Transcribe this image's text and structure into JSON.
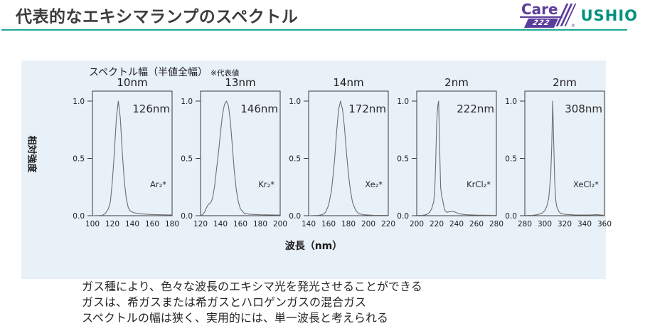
{
  "header": {
    "title": "代表的なエキシマランプのスペクトル",
    "care_logo": {
      "word": "Care",
      "number": "222",
      "registered": "®"
    },
    "ushio": "USHIO",
    "accent_color": "#21a795",
    "purple_color": "#5b3d9c"
  },
  "panel": {
    "bg_color": "#e8f0f8",
    "fwhm_header": "スペクトル幅（半値全幅）",
    "fwhm_note": "※代表値",
    "ylabel": "相対強度",
    "xlabel": "波長（nm）"
  },
  "chart_data": [
    {
      "type": "line",
      "title": "10nm",
      "peak_label": "126nm",
      "gas_label": "Ar₂*",
      "xlim": [
        100,
        180
      ],
      "ylim": [
        0,
        1.1
      ],
      "xticks": [
        100,
        120,
        140,
        160,
        180
      ],
      "yticks": [
        0.0,
        0.5,
        1.0
      ],
      "points": [
        [
          100,
          0
        ],
        [
          110,
          0.003
        ],
        [
          113,
          0.02
        ],
        [
          116,
          0.06
        ],
        [
          118,
          0.12
        ],
        [
          120,
          0.3
        ],
        [
          122,
          0.55
        ],
        [
          124,
          0.85
        ],
        [
          126,
          1.0
        ],
        [
          128,
          0.85
        ],
        [
          130,
          0.55
        ],
        [
          132,
          0.3
        ],
        [
          134,
          0.15
        ],
        [
          136,
          0.07
        ],
        [
          138,
          0.04
        ],
        [
          142,
          0.025
        ],
        [
          150,
          0.015
        ],
        [
          160,
          0.01
        ],
        [
          180,
          0.006
        ]
      ]
    },
    {
      "type": "line",
      "title": "13nm",
      "peak_label": "146nm",
      "gas_label": "Kr₂*",
      "xlim": [
        120,
        200
      ],
      "ylim": [
        0,
        1.1
      ],
      "xticks": [
        120,
        140,
        160,
        180,
        200
      ],
      "yticks": [
        0.0,
        0.5,
        1.0
      ],
      "points": [
        [
          120,
          0
        ],
        [
          122,
          0.01
        ],
        [
          124,
          0.03
        ],
        [
          126,
          0.07
        ],
        [
          128,
          0.1
        ],
        [
          130,
          0.11
        ],
        [
          132,
          0.15
        ],
        [
          134,
          0.25
        ],
        [
          136,
          0.4
        ],
        [
          138,
          0.55
        ],
        [
          140,
          0.72
        ],
        [
          142,
          0.88
        ],
        [
          144,
          0.97
        ],
        [
          146,
          1.0
        ],
        [
          148,
          0.96
        ],
        [
          150,
          0.82
        ],
        [
          152,
          0.6
        ],
        [
          154,
          0.38
        ],
        [
          156,
          0.22
        ],
        [
          158,
          0.12
        ],
        [
          160,
          0.06
        ],
        [
          164,
          0.02
        ],
        [
          170,
          0.012
        ],
        [
          180,
          0.008
        ],
        [
          200,
          0.005
        ]
      ]
    },
    {
      "type": "line",
      "title": "14nm",
      "peak_label": "172nm",
      "gas_label": "Xe₂*",
      "xlim": [
        140,
        220
      ],
      "ylim": [
        0,
        1.1
      ],
      "xticks": [
        140,
        160,
        180,
        200,
        220
      ],
      "yticks": [
        0.0,
        0.5,
        1.0
      ],
      "points": [
        [
          140,
          0
        ],
        [
          150,
          0.003
        ],
        [
          154,
          0.01
        ],
        [
          157,
          0.03
        ],
        [
          160,
          0.09
        ],
        [
          163,
          0.22
        ],
        [
          166,
          0.48
        ],
        [
          168,
          0.72
        ],
        [
          170,
          0.92
        ],
        [
          172,
          1.0
        ],
        [
          174,
          0.93
        ],
        [
          176,
          0.77
        ],
        [
          178,
          0.55
        ],
        [
          180,
          0.36
        ],
        [
          182,
          0.22
        ],
        [
          184,
          0.12
        ],
        [
          187,
          0.05
        ],
        [
          190,
          0.02
        ],
        [
          195,
          0.008
        ],
        [
          205,
          0.004
        ],
        [
          220,
          0.003
        ]
      ]
    },
    {
      "type": "line",
      "title": "2nm",
      "peak_label": "222nm",
      "gas_label": "KrCl₂*",
      "xlim": [
        200,
        280
      ],
      "ylim": [
        0,
        1.1
      ],
      "xticks": [
        200,
        220,
        240,
        260,
        280
      ],
      "yticks": [
        0.0,
        0.5,
        1.0
      ],
      "points": [
        [
          200,
          0.002
        ],
        [
          206,
          0.004
        ],
        [
          210,
          0.01
        ],
        [
          213,
          0.03
        ],
        [
          215,
          0.06
        ],
        [
          217,
          0.12
        ],
        [
          218,
          0.2
        ],
        [
          219,
          0.45
        ],
        [
          220,
          0.8
        ],
        [
          221,
          0.95
        ],
        [
          222,
          1.0
        ],
        [
          223,
          0.6
        ],
        [
          224,
          0.25
        ],
        [
          225,
          0.17
        ],
        [
          226,
          0.14
        ],
        [
          227,
          0.09
        ],
        [
          228,
          0.05
        ],
        [
          230,
          0.03
        ],
        [
          233,
          0.035
        ],
        [
          236,
          0.04
        ],
        [
          239,
          0.03
        ],
        [
          243,
          0.015
        ],
        [
          250,
          0.008
        ],
        [
          260,
          0.005
        ],
        [
          280,
          0.003
        ]
      ]
    },
    {
      "type": "line",
      "title": "2nm",
      "peak_label": "308nm",
      "gas_label": "XeCl₂*",
      "xlim": [
        280,
        360
      ],
      "ylim": [
        0,
        1.1
      ],
      "xticks": [
        280,
        300,
        320,
        340,
        360
      ],
      "yticks": [
        0.0,
        0.5,
        1.0
      ],
      "points": [
        [
          280,
          0.002
        ],
        [
          288,
          0.004
        ],
        [
          293,
          0.01
        ],
        [
          297,
          0.02
        ],
        [
          300,
          0.045
        ],
        [
          302,
          0.08
        ],
        [
          304,
          0.15
        ],
        [
          306,
          0.35
        ],
        [
          307,
          0.6
        ],
        [
          308,
          1.0
        ],
        [
          309,
          0.65
        ],
        [
          310,
          0.3
        ],
        [
          311,
          0.14
        ],
        [
          312,
          0.08
        ],
        [
          314,
          0.04
        ],
        [
          316,
          0.02
        ],
        [
          320,
          0.012
        ],
        [
          330,
          0.007
        ],
        [
          345,
          0.006
        ],
        [
          352,
          0.009
        ],
        [
          360,
          0.004
        ]
      ]
    }
  ],
  "footer": {
    "lines": [
      "ガス種により、色々な波長のエキシマ光を発光させることができる",
      "ガスは、希ガスまたは希ガスとハロゲンガスの混合ガス",
      "スペクトルの幅は狭く、実用的には、単一波長と考えられる"
    ]
  }
}
